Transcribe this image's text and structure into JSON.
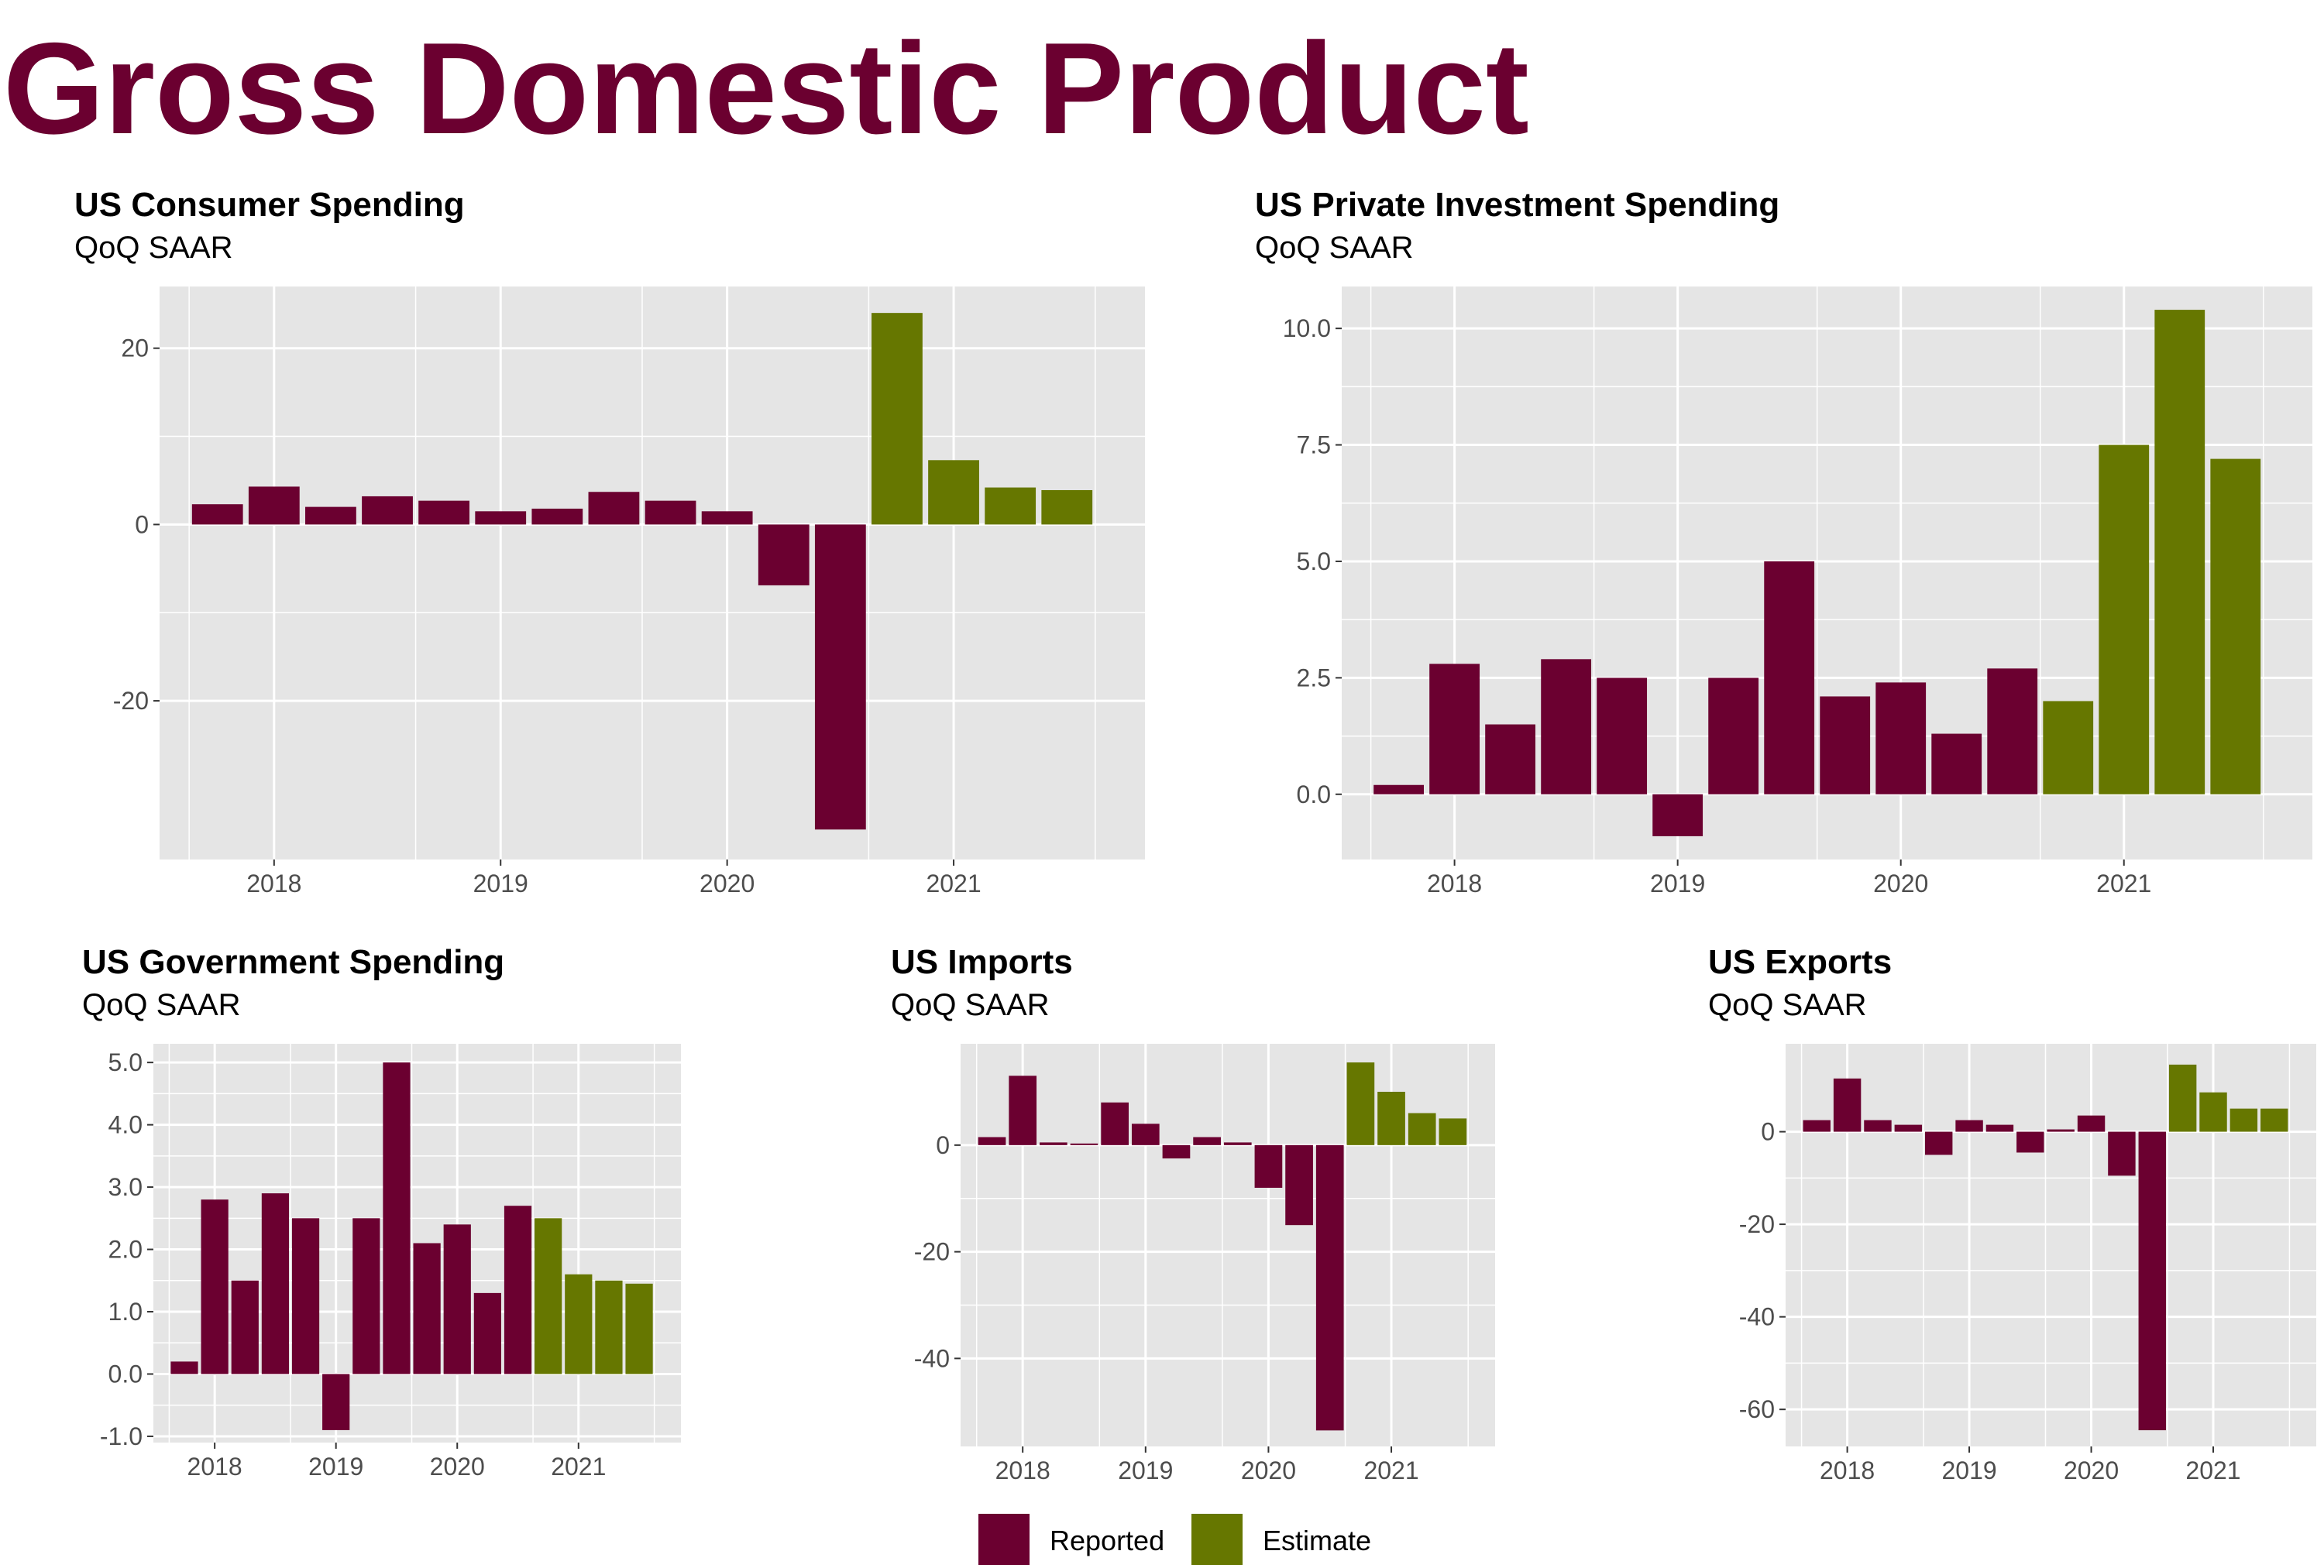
{
  "title": "Gross Domestic Product",
  "colors": {
    "reported": "#6b0030",
    "estimate": "#667700",
    "panel_bg": "#e5e5e5",
    "grid": "#ffffff",
    "title": "#6b0030"
  },
  "legend": [
    {
      "label": "Reported",
      "color": "#6b0030"
    },
    {
      "label": "Estimate",
      "color": "#667700"
    }
  ],
  "chart_data": [
    {
      "type": "bar",
      "title": "US Consumer Spending",
      "subtitle": "QoQ SAAR",
      "x_tick_labels": [
        "2018",
        "2019",
        "2020",
        "2021"
      ],
      "y_tick_labels": [
        "20",
        "0",
        "-20"
      ],
      "y_tick_values": [
        20,
        0,
        -20
      ],
      "ylim": [
        -38,
        27
      ],
      "series": [
        {
          "name": "Reported",
          "values": [
            2.3,
            4.3,
            2.0,
            3.2,
            2.7,
            1.5,
            1.8,
            3.7,
            2.7,
            1.5,
            -6.9,
            -34.6
          ]
        },
        {
          "name": "Estimate",
          "values": [
            24.0,
            7.3,
            4.2,
            3.9
          ]
        }
      ]
    },
    {
      "type": "bar",
      "title": "US Private Investment Spending",
      "subtitle": "QoQ SAAR",
      "x_tick_labels": [
        "2018",
        "2019",
        "2020",
        "2021"
      ],
      "y_tick_labels": [
        "10.0",
        "7.5",
        "5.0",
        "2.5",
        "0.0"
      ],
      "y_tick_values": [
        10,
        7.5,
        5,
        2.5,
        0
      ],
      "ylim": [
        -1.4,
        10.9
      ],
      "series": [
        {
          "name": "Reported",
          "values": [
            0.2,
            2.8,
            1.5,
            2.9,
            2.5,
            -0.9,
            2.5,
            5.0,
            2.1,
            2.4,
            1.3,
            2.7
          ]
        },
        {
          "name": "Estimate",
          "values": [
            2.0,
            7.5,
            10.4,
            7.2
          ]
        }
      ]
    },
    {
      "type": "bar",
      "title": "US Government Spending",
      "subtitle": "QoQ SAAR",
      "x_tick_labels": [
        "2018",
        "2019",
        "2020",
        "2021"
      ],
      "y_tick_labels": [
        "5.0",
        "4.0",
        "3.0",
        "2.0",
        "1.0",
        "0.0",
        "-1.0"
      ],
      "y_tick_values": [
        5,
        4,
        3,
        2,
        1,
        0,
        -1
      ],
      "ylim": [
        -1.1,
        5.3
      ],
      "series": [
        {
          "name": "Reported",
          "values": [
            0.2,
            2.8,
            1.5,
            2.9,
            2.5,
            -0.9,
            2.5,
            5.0,
            2.1,
            2.4,
            1.3,
            2.7
          ]
        },
        {
          "name": "Estimate",
          "values": [
            2.5,
            1.6,
            1.5,
            1.45
          ]
        }
      ]
    },
    {
      "type": "bar",
      "title": "US Imports",
      "subtitle": "QoQ SAAR",
      "x_tick_labels": [
        "2018",
        "2019",
        "2020",
        "2021"
      ],
      "y_tick_labels": [
        "0",
        "-20",
        "-40"
      ],
      "y_tick_values": [
        0,
        -20,
        -40
      ],
      "ylim": [
        -56.5,
        19
      ],
      "series": [
        {
          "name": "Reported",
          "values": [
            1.5,
            13.0,
            0.5,
            0.3,
            8.0,
            4.0,
            -2.5,
            1.5,
            0.5,
            -8.0,
            -15.0,
            -53.5
          ]
        },
        {
          "name": "Estimate",
          "values": [
            15.5,
            10.0,
            6.0,
            5.0
          ]
        }
      ]
    },
    {
      "type": "bar",
      "title": "US Exports",
      "subtitle": "QoQ SAAR",
      "x_tick_labels": [
        "2018",
        "2019",
        "2020",
        "2021"
      ],
      "y_tick_labels": [
        "0",
        "-20",
        "-40",
        "-60"
      ],
      "y_tick_values": [
        0,
        -20,
        -40,
        -60
      ],
      "ylim": [
        -68,
        19
      ],
      "series": [
        {
          "name": "Reported",
          "values": [
            2.5,
            11.5,
            2.5,
            1.5,
            -5.0,
            2.5,
            1.5,
            -4.5,
            0.5,
            3.5,
            -9.5,
            -64.5
          ]
        },
        {
          "name": "Estimate",
          "values": [
            14.5,
            8.5,
            5.0,
            5.0
          ]
        }
      ]
    }
  ]
}
